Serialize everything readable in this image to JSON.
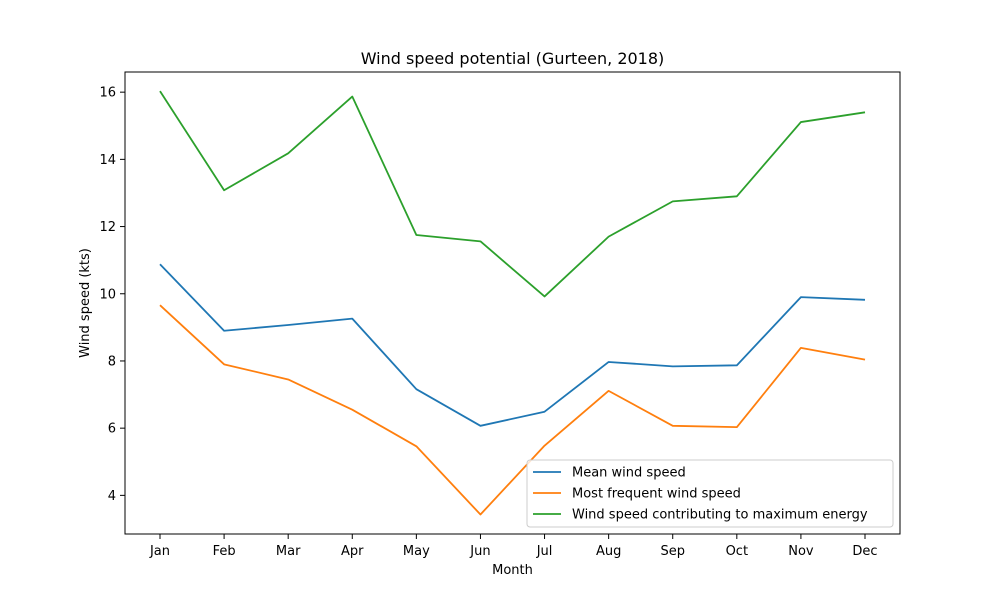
{
  "chart_data": {
    "type": "line",
    "title": "Wind speed potential (Gurteen, 2018)",
    "xlabel": "Month",
    "ylabel": "Wind speed (kts)",
    "categories": [
      "Jan",
      "Feb",
      "Mar",
      "Apr",
      "May",
      "Jun",
      "Jul",
      "Aug",
      "Sep",
      "Oct",
      "Nov",
      "Dec"
    ],
    "ylim": [
      2.85,
      16.6
    ],
    "yticks": [
      4,
      6,
      8,
      10,
      12,
      14,
      16
    ],
    "grid": false,
    "legend_position": "lower-right",
    "series": [
      {
        "name": "Mean wind speed",
        "color": "#1f77b4",
        "values": [
          10.88,
          8.9,
          9.07,
          9.26,
          7.16,
          6.07,
          6.49,
          7.97,
          7.84,
          7.87,
          9.9,
          9.82
        ]
      },
      {
        "name": "Most frequent wind speed",
        "color": "#ff7f0e",
        "values": [
          9.66,
          7.9,
          7.45,
          6.55,
          5.46,
          3.43,
          5.48,
          7.11,
          6.07,
          6.03,
          8.39,
          8.04
        ]
      },
      {
        "name": "Wind speed contributing to maximum energy",
        "color": "#2ca02c",
        "values": [
          16.03,
          13.08,
          14.18,
          15.87,
          11.75,
          11.56,
          9.92,
          11.7,
          12.75,
          12.9,
          15.11,
          15.4
        ]
      }
    ]
  }
}
